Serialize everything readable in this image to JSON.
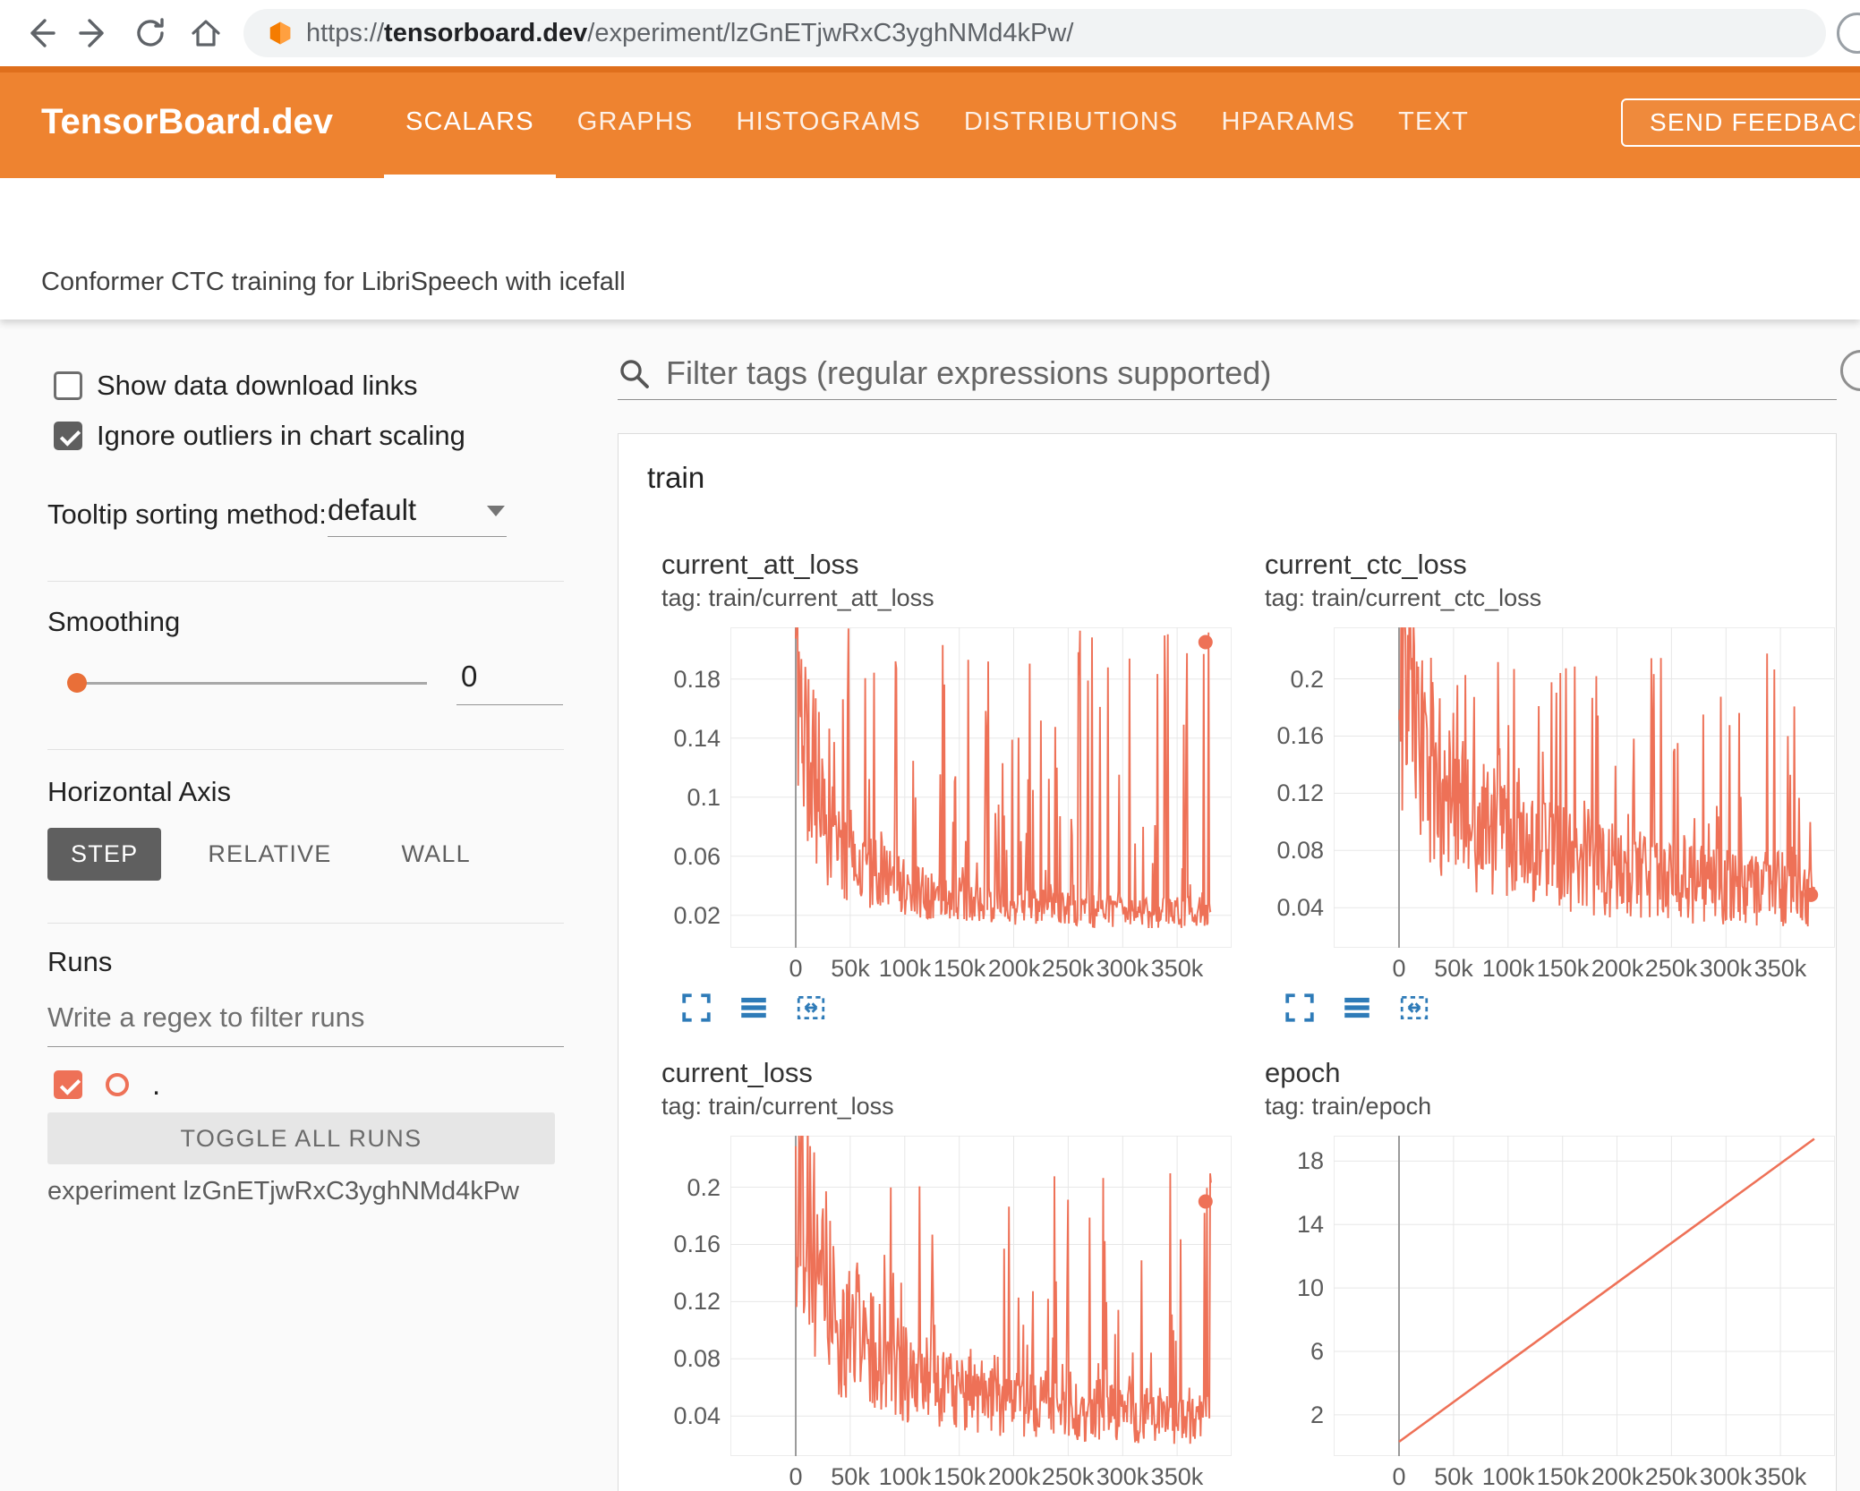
{
  "browser": {
    "url_prefix": "https://",
    "url_domain": "tensorboard.dev",
    "url_path": "/experiment/lzGnETjwRxC3yghNMd4kPw/"
  },
  "header": {
    "brand": "TensorBoard.dev",
    "tabs": [
      {
        "label": "SCALARS",
        "active": true
      },
      {
        "label": "GRAPHS",
        "active": false
      },
      {
        "label": "HISTOGRAMS",
        "active": false
      },
      {
        "label": "DISTRIBUTIONS",
        "active": false
      },
      {
        "label": "HPARAMS",
        "active": false
      },
      {
        "label": "TEXT",
        "active": false
      }
    ],
    "feedback_label": "SEND FEEDBACK"
  },
  "experiment_title": "Conformer CTC training for LibriSpeech with icefall",
  "sidebar": {
    "show_download": {
      "label": "Show data download links",
      "checked": false
    },
    "ignore_outliers": {
      "label": "Ignore outliers in chart scaling",
      "checked": true
    },
    "tooltip_sort": {
      "label": "Tooltip sorting method:",
      "value": "default"
    },
    "smoothing": {
      "label": "Smoothing",
      "value": "0"
    },
    "horizontal_axis": {
      "label": "Horizontal Axis",
      "options": [
        "STEP",
        "RELATIVE",
        "WALL"
      ],
      "selected": "STEP"
    },
    "runs": {
      "label": "Runs",
      "filter_placeholder": "Write a regex to filter runs",
      "run_label": ".",
      "run_checked": true,
      "toggle_button": "TOGGLE ALL RUNS",
      "experiment_caption": "experiment lzGnETjwRxC3yghNMd4kPw"
    }
  },
  "main": {
    "filter_placeholder": "Filter tags (regular expressions supported)",
    "section_label": "train"
  },
  "colors": {
    "header_orange": "#ee8330",
    "header_orange_dark": "#df6f1c",
    "run_color": "#ee7157",
    "icon_blue": "#2e7bb8",
    "selected_button_bg": "#5f5f5f"
  },
  "chart_data": [
    {
      "type": "line",
      "title": "current_att_loss",
      "tag": "tag: train/current_att_loss",
      "x": {
        "domain": [
          -60000,
          400000
        ],
        "ticks": [
          {
            "v": 0,
            "l": "0"
          },
          {
            "v": 50000,
            "l": "50k"
          },
          {
            "v": 100000,
            "l": "100k"
          },
          {
            "v": 150000,
            "l": "150k"
          },
          {
            "v": 200000,
            "l": "200k"
          },
          {
            "v": 250000,
            "l": "250k"
          },
          {
            "v": 300000,
            "l": "300k"
          },
          {
            "v": 350000,
            "l": "350k"
          }
        ]
      },
      "y": {
        "domain": [
          -0.002,
          0.215
        ],
        "ticks": [
          {
            "v": 0.02,
            "l": "0.02"
          },
          {
            "v": 0.06,
            "l": "0.06"
          },
          {
            "v": 0.1,
            "l": "0.1"
          },
          {
            "v": 0.14,
            "l": "0.14"
          },
          {
            "v": 0.18,
            "l": "0.18"
          }
        ]
      },
      "series": {
        "name": ".",
        "color": "#ee7157",
        "trend": [
          [
            0,
            0.205
          ],
          [
            4000,
            0.17
          ],
          [
            12000,
            0.12
          ],
          [
            25000,
            0.085
          ],
          [
            40000,
            0.065
          ],
          [
            60000,
            0.052
          ],
          [
            90000,
            0.042
          ],
          [
            130000,
            0.033
          ],
          [
            180000,
            0.028
          ],
          [
            240000,
            0.024
          ],
          [
            300000,
            0.022
          ],
          [
            381000,
            0.022
          ]
        ],
        "noise": {
          "seed": 11,
          "rel_jitter": 0.5,
          "spike_prob": 0.22,
          "spike_pow": 1.8,
          "spike_max": 0.215
        },
        "points_n": 520,
        "x_end": 381000,
        "end_marker": [
          376000,
          0.205
        ]
      }
    },
    {
      "type": "line",
      "title": "current_ctc_loss",
      "tag": "tag: train/current_ctc_loss",
      "x": {
        "domain": [
          -60000,
          400000
        ],
        "ticks": [
          {
            "v": 0,
            "l": "0"
          },
          {
            "v": 50000,
            "l": "50k"
          },
          {
            "v": 100000,
            "l": "100k"
          },
          {
            "v": 150000,
            "l": "150k"
          },
          {
            "v": 200000,
            "l": "200k"
          },
          {
            "v": 250000,
            "l": "250k"
          },
          {
            "v": 300000,
            "l": "300k"
          },
          {
            "v": 350000,
            "l": "350k"
          }
        ]
      },
      "y": {
        "domain": [
          0.012,
          0.236
        ],
        "ticks": [
          {
            "v": 0.04,
            "l": "0.04"
          },
          {
            "v": 0.08,
            "l": "0.08"
          },
          {
            "v": 0.12,
            "l": "0.12"
          },
          {
            "v": 0.16,
            "l": "0.16"
          },
          {
            "v": 0.2,
            "l": "0.2"
          }
        ]
      },
      "series": {
        "name": ".",
        "color": "#ee7157",
        "trend": [
          [
            0,
            0.225
          ],
          [
            8000,
            0.19
          ],
          [
            20000,
            0.15
          ],
          [
            40000,
            0.12
          ],
          [
            70000,
            0.1
          ],
          [
            100000,
            0.088
          ],
          [
            140000,
            0.077
          ],
          [
            180000,
            0.068
          ],
          [
            240000,
            0.06
          ],
          [
            300000,
            0.055
          ],
          [
            381000,
            0.052
          ]
        ],
        "noise": {
          "seed": 23,
          "rel_jitter": 0.5,
          "spike_prob": 0.16,
          "spike_pow": 1.8,
          "spike_max": 0.22
        },
        "points_n": 520,
        "x_end": 381000,
        "end_marker": [
          378000,
          0.049
        ]
      }
    },
    {
      "type": "line",
      "title": "current_loss",
      "tag": "tag: train/current_loss",
      "x": {
        "domain": [
          -60000,
          400000
        ],
        "ticks": [
          {
            "v": 0,
            "l": "0"
          },
          {
            "v": 50000,
            "l": "50k"
          },
          {
            "v": 100000,
            "l": "100k"
          },
          {
            "v": 150000,
            "l": "150k"
          },
          {
            "v": 200000,
            "l": "200k"
          },
          {
            "v": 250000,
            "l": "250k"
          },
          {
            "v": 300000,
            "l": "300k"
          },
          {
            "v": 350000,
            "l": "350k"
          }
        ]
      },
      "y": {
        "domain": [
          0.012,
          0.236
        ],
        "ticks": [
          {
            "v": 0.04,
            "l": "0.04"
          },
          {
            "v": 0.08,
            "l": "0.08"
          },
          {
            "v": 0.12,
            "l": "0.12"
          },
          {
            "v": 0.16,
            "l": "0.16"
          },
          {
            "v": 0.2,
            "l": "0.2"
          }
        ]
      },
      "series": {
        "name": ".",
        "color": "#ee7157",
        "trend": [
          [
            0,
            0.225
          ],
          [
            8000,
            0.18
          ],
          [
            20000,
            0.14
          ],
          [
            40000,
            0.105
          ],
          [
            70000,
            0.085
          ],
          [
            100000,
            0.072
          ],
          [
            140000,
            0.06
          ],
          [
            180000,
            0.052
          ],
          [
            240000,
            0.046
          ],
          [
            300000,
            0.042
          ],
          [
            381000,
            0.04
          ]
        ],
        "noise": {
          "seed": 37,
          "rel_jitter": 0.5,
          "spike_prob": 0.2,
          "spike_pow": 1.8,
          "spike_max": 0.21
        },
        "points_n": 520,
        "x_end": 381000,
        "end_marker": [
          376000,
          0.19
        ]
      }
    },
    {
      "type": "line",
      "title": "epoch",
      "tag": "tag: train/epoch",
      "x": {
        "domain": [
          -60000,
          400000
        ],
        "ticks": [
          {
            "v": 0,
            "l": "0"
          },
          {
            "v": 50000,
            "l": "50k"
          },
          {
            "v": 100000,
            "l": "100k"
          },
          {
            "v": 150000,
            "l": "150k"
          },
          {
            "v": 200000,
            "l": "200k"
          },
          {
            "v": 250000,
            "l": "250k"
          },
          {
            "v": 300000,
            "l": "300k"
          },
          {
            "v": 350000,
            "l": "350k"
          }
        ]
      },
      "y": {
        "domain": [
          -0.6,
          19.6
        ],
        "ticks": [
          {
            "v": 2,
            "l": "2"
          },
          {
            "v": 6,
            "l": "6"
          },
          {
            "v": 10,
            "l": "10"
          },
          {
            "v": 14,
            "l": "14"
          },
          {
            "v": 18,
            "l": "18"
          }
        ]
      },
      "series": {
        "name": ".",
        "color": "#ee7157",
        "trend": [
          [
            0,
            0.3
          ],
          [
            381000,
            19.4
          ]
        ],
        "noise": null,
        "points_n": 2,
        "x_end": 381000,
        "end_marker": null
      }
    }
  ]
}
